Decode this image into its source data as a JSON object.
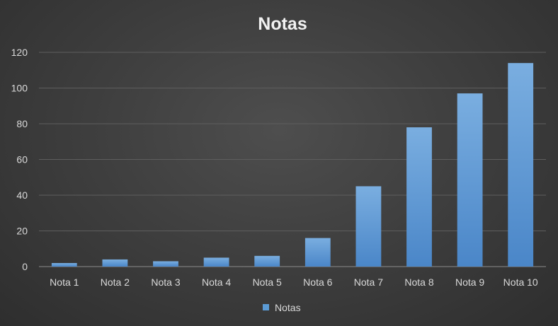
{
  "chart_data": {
    "type": "bar",
    "title": "Notas",
    "categories": [
      "Nota 1",
      "Nota 2",
      "Nota 3",
      "Nota 4",
      "Nota 5",
      "Nota 6",
      "Nota 7",
      "Nota 8",
      "Nota 9",
      "Nota 10"
    ],
    "series": [
      {
        "name": "Notas",
        "values": [
          2,
          4,
          3,
          5,
          6,
          16,
          45,
          78,
          97,
          114
        ]
      }
    ],
    "ylim": [
      0,
      120
    ],
    "yticks": [
      0,
      20,
      40,
      60,
      80,
      100,
      120
    ],
    "grid": true,
    "legend": "bottom",
    "colors": {
      "bar_top": "#7aaee0",
      "bar_bottom": "#4a86c8",
      "text": "#d9d9d9",
      "title": "#f2f2f2",
      "grid": "#5e5e5e",
      "axis": "#8c8c8c"
    }
  }
}
